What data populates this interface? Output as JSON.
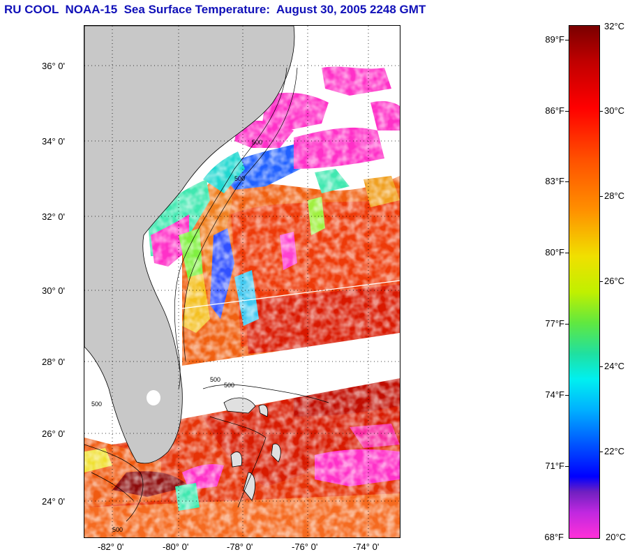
{
  "title": "RU COOL  NOAA-15  Sea Surface Temperature:  August 30, 2005 2248 GMT",
  "map": {
    "lat_labels": [
      "36° 0'",
      "34° 0'",
      "32° 0'",
      "30° 0'",
      "28° 0'",
      "26° 0'",
      "24° 0'"
    ],
    "lon_labels": [
      "-82° 0'",
      "-80° 0'",
      "-78° 0'",
      "-76° 0'",
      "-74° 0'"
    ],
    "contour_labels": [
      "500",
      "500",
      "500",
      "500",
      "500",
      "500"
    ]
  },
  "colorbar": {
    "fahrenheit_labels": [
      "89°F",
      "86°F",
      "83°F",
      "80°F",
      "77°F",
      "74°F",
      "71°F",
      "68°F"
    ],
    "celsius_labels": [
      "32°C",
      "30°C",
      "28°C",
      "26°C",
      "24°C",
      "22°C",
      "20°C"
    ]
  },
  "colors": {
    "title": "#1010b8",
    "land": "#c8c8c8",
    "warm": "#e82000",
    "cloud": "#ff30c8"
  }
}
